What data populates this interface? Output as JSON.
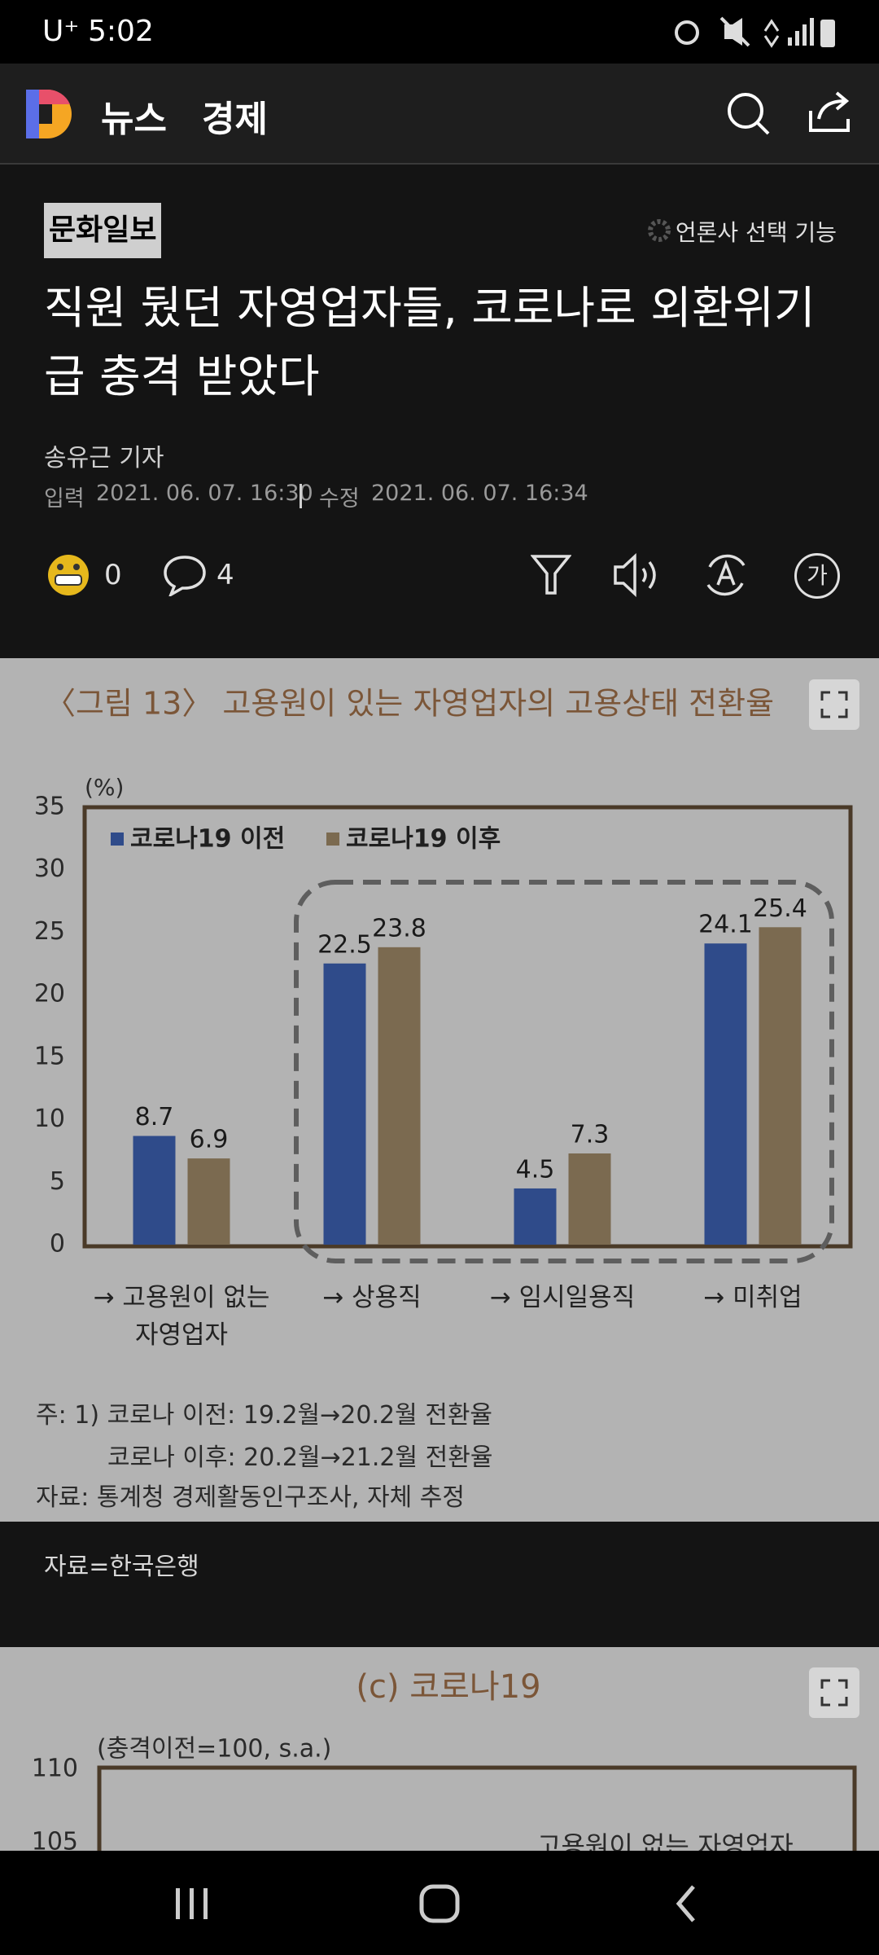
{
  "status_bar": {
    "carrier": "U⁺",
    "time": "5:02"
  },
  "app_bar": {
    "section": "뉴스",
    "subsection": "경제"
  },
  "article": {
    "press": "문화일보",
    "press_select": "언론사 선택 기능",
    "title": "직원 뒀던 자영업자들, 코로나로 외환위기급 충격 받았다",
    "reporter": "송유근 기자",
    "input_label": "입력",
    "input_time": "2021. 06. 07. 16:30",
    "edit_label": "수정",
    "edit_time": "2021. 06. 07. 16:34",
    "reactions": 0,
    "comments": 4,
    "font_button": "가",
    "image_caption": "자료=한국은행"
  },
  "chart_data": [
    {
      "type": "bar",
      "title": "〈그림 13〉 고용원이 있는 자영업자의 고용상태 전환율",
      "ylabel": "(%)",
      "categories": [
        "→ 고용원이 없는\n자영업자",
        "→ 상용직",
        "→ 임시일용직",
        "→ 미취업"
      ],
      "series": [
        {
          "name": "코로나19 이전",
          "color": "#2f4b8a",
          "values": [
            8.7,
            22.5,
            4.5,
            24.1
          ]
        },
        {
          "name": "코로나19 이후",
          "color": "#7b6a50",
          "values": [
            6.9,
            23.8,
            7.3,
            25.4
          ]
        }
      ],
      "ylim": [
        0,
        35
      ],
      "yticks": [
        0,
        5,
        10,
        15,
        20,
        25,
        30,
        35
      ],
      "legend": "upper left",
      "notes": [
        "주: 1) 코로나 이전: 19.2월→20.2월 전환율",
        "코로나 이후: 20.2월→21.2월 전환율",
        "자료: 통계청 경제활동인구조사, 자체 추정"
      ]
    },
    {
      "type": "line",
      "title": "(c) 코로나19",
      "ylabel": "(충격이전=100, s.a.)",
      "ylim": [
        100,
        110
      ],
      "yticks": [
        105,
        110
      ],
      "annotation": "고용원이 없는 자영업자"
    }
  ]
}
